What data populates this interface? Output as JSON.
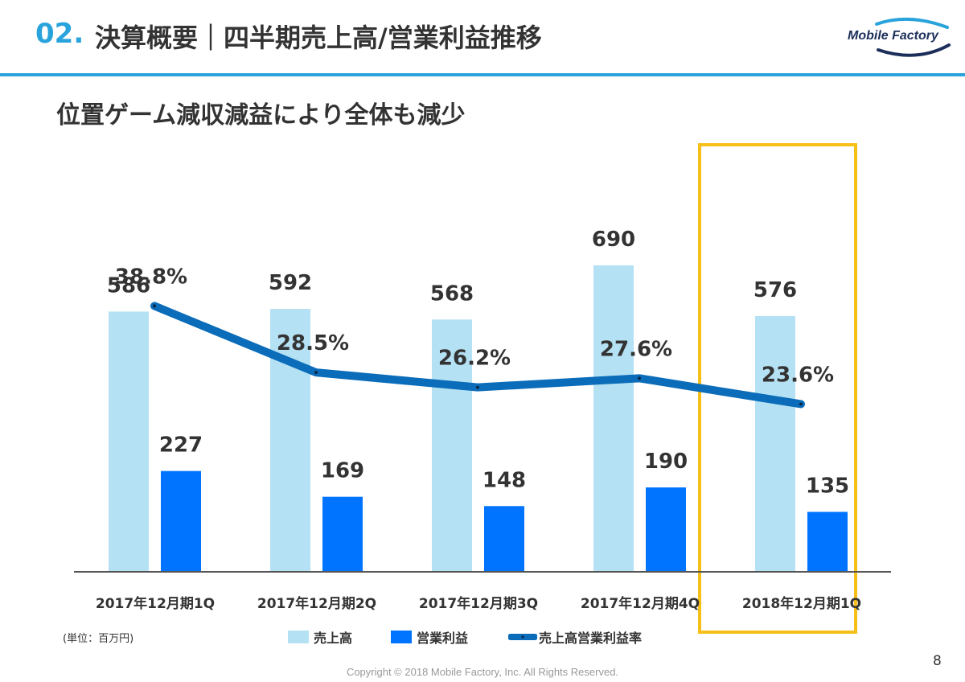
{
  "header": {
    "section_number": "02.",
    "title": "決算概要｜四半期売上高/営業利益推移",
    "logo_text": "Mobile Factory"
  },
  "subtitle": "位置ゲーム減収減益により全体も減少",
  "unit_note": "(単位：百万円)",
  "legend": {
    "sales": "売上高",
    "operating_profit": "営業利益",
    "margin": "売上高営業利益率"
  },
  "page_number": "8",
  "copyright": "Copyright © 2018 Mobile Factory, Inc. All Rights Reserved.",
  "colors": {
    "accent": "#29a3dc",
    "sales_bar": "#b4e1f3",
    "profit_bar": "#0074ff",
    "margin_line": "#0b6cb9",
    "highlight_box": "#f6c018"
  },
  "chart_data": {
    "type": "bar",
    "categories": [
      "2017年12月期1Q",
      "2017年12月期2Q",
      "2017年12月期3Q",
      "2017年12月期4Q",
      "2018年12月期1Q"
    ],
    "series": [
      {
        "name": "売上高",
        "type": "bar",
        "values": [
          586,
          592,
          568,
          690,
          576
        ]
      },
      {
        "name": "営業利益",
        "type": "bar",
        "values": [
          227,
          169,
          148,
          190,
          135
        ]
      },
      {
        "name": "売上高営業利益率",
        "type": "line",
        "values": [
          38.8,
          28.5,
          26.2,
          27.6,
          23.6
        ],
        "labels": [
          "38.8%",
          "28.5%",
          "26.2%",
          "27.6%",
          "23.6%"
        ]
      }
    ],
    "data_labels": {
      "sales": [
        "586",
        "592",
        "568",
        "690",
        "576"
      ],
      "operating_profit": [
        "227",
        "169",
        "148",
        "190",
        "135"
      ]
    },
    "highlighted_category": "2018年12月期1Q",
    "legend_position": "bottom",
    "grid": false
  }
}
